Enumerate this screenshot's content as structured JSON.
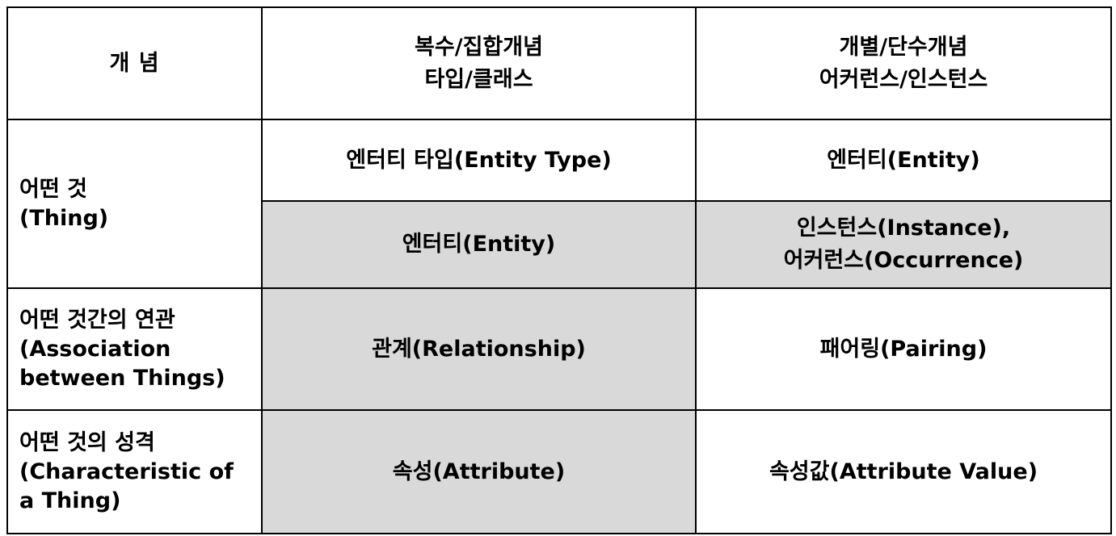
{
  "header": {
    "concept": "개 념",
    "plural_line1": "복수/집합개념",
    "plural_line2": "타입/클래스",
    "single_line1": "개별/단수개념",
    "single_line2": "어커런스/인스턴스"
  },
  "rows": [
    {
      "concept_line1": "어떤 것",
      "concept_line2": "(Thing)",
      "sub": [
        {
          "plural": "엔터티 타입(Entity Type)",
          "single": "엔터티(Entity)"
        },
        {
          "plural": "엔터티(Entity)",
          "single_line1": "인스턴스(Instance),",
          "single_line2": "어커런스(Occurrence)"
        }
      ]
    },
    {
      "concept_line1": "어떤 것간의 연관",
      "concept_line2": "(Association",
      "concept_line3": "between Things)",
      "plural": "관계(Relationship)",
      "single": "패어링(Pairing)"
    },
    {
      "concept_line1": "어떤 것의 성격",
      "concept_line2": "(Characteristic of",
      "concept_line3": "a Thing)",
      "plural": "속성(Attribute)",
      "single": "속성값(Attribute Value)"
    }
  ],
  "colors": {
    "shade": "#d9d9d9",
    "border": "#000000",
    "background": "#ffffff"
  }
}
